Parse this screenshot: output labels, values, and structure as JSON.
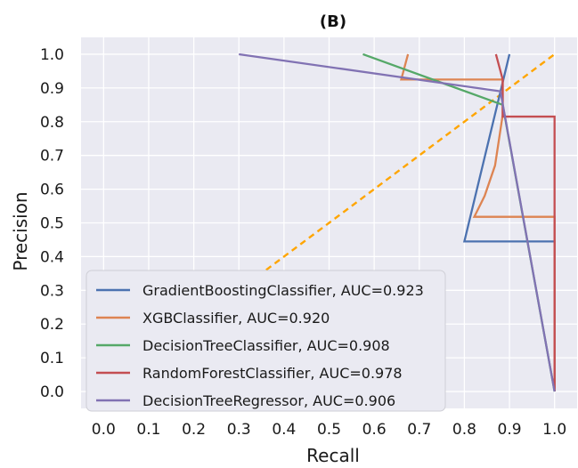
{
  "chart_data": {
    "type": "line",
    "title": "(B)",
    "xlabel": "Recall",
    "ylabel": "Precision",
    "xlim": [
      -0.05,
      1.05
    ],
    "ylim": [
      -0.05,
      1.05
    ],
    "xticks": [
      "0.0",
      "0.1",
      "0.2",
      "0.3",
      "0.4",
      "0.5",
      "0.6",
      "0.7",
      "0.8",
      "0.9",
      "1.0"
    ],
    "yticks": [
      "0.0",
      "0.1",
      "0.2",
      "0.3",
      "0.4",
      "0.5",
      "0.6",
      "0.7",
      "0.8",
      "0.9",
      "1.0"
    ],
    "grid": true,
    "legend_position": "lower-left",
    "background_color": "#eaeaf2",
    "grid_color": "#ffffff",
    "series": [
      {
        "name": "GradientBoostingClassifier, AUC=0.923",
        "color": "#4c72b0",
        "x": [
          1.0,
          1.0,
          0.8,
          0.9,
          0.9
        ],
        "y": [
          0.0,
          0.445,
          0.445,
          1.0,
          1.0
        ]
      },
      {
        "name": "XGBClassifier, AUC=0.920",
        "color": "#dd8452",
        "x": [
          1.0,
          1.0,
          0.822,
          0.845,
          0.868,
          0.885,
          0.885,
          0.66,
          0.675
        ],
        "y": [
          0.0,
          0.518,
          0.518,
          0.58,
          0.67,
          0.82,
          0.925,
          0.925,
          1.0
        ]
      },
      {
        "name": "DecisionTreeClassifier, AUC=0.908",
        "color": "#55a868",
        "x": [
          1.0,
          0.885,
          0.575
        ],
        "y": [
          0.0,
          0.85,
          1.0
        ]
      },
      {
        "name": "RandomForestClassifier, AUC=0.978",
        "color": "#c44e52",
        "x": [
          1.0,
          1.0,
          0.885,
          0.885,
          0.87
        ],
        "y": [
          0.0,
          0.815,
          0.815,
          0.925,
          1.0
        ]
      },
      {
        "name": "DecisionTreeRegressor, AUC=0.906",
        "color": "#8172b3",
        "x": [
          1.0,
          0.88,
          0.3
        ],
        "y": [
          0.0,
          0.89,
          1.0
        ]
      }
    ],
    "reference_line": {
      "color": "#ffa500",
      "style": "dashed",
      "x": [
        0.0,
        1.0
      ],
      "y": [
        0.0,
        1.0
      ]
    }
  }
}
